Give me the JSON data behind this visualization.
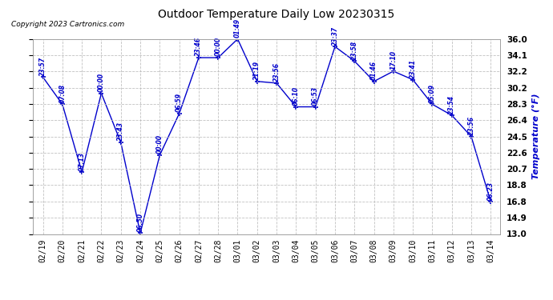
{
  "title": "Outdoor Temperature Daily Low 20230315",
  "ylabel": "Temperature (°F)",
  "copyright": "Copyright 2023 Cartronics.com",
  "background_color": "#ffffff",
  "line_color": "#0000cc",
  "grid_color": "#bbbbbb",
  "ylim": [
    13.0,
    36.0
  ],
  "yticks": [
    13.0,
    14.9,
    16.8,
    18.8,
    20.7,
    22.6,
    24.5,
    26.4,
    28.3,
    30.2,
    32.2,
    34.1,
    36.0
  ],
  "ytick_labels": [
    "13.0",
    "14.9",
    "16.8",
    "18.8",
    "20.7",
    "22.6",
    "24.5",
    "26.4",
    "28.3",
    "30.2",
    "32.2",
    "34.1",
    "36.0"
  ],
  "dates": [
    "02/19",
    "02/20",
    "02/21",
    "02/22",
    "02/23",
    "02/24",
    "02/25",
    "02/26",
    "02/27",
    "02/28",
    "03/01",
    "03/02",
    "03/03",
    "03/04",
    "03/05",
    "03/06",
    "03/07",
    "03/08",
    "03/09",
    "03/10",
    "03/11",
    "03/12",
    "03/13",
    "03/14"
  ],
  "temps": [
    31.5,
    28.3,
    20.3,
    29.6,
    23.8,
    13.1,
    22.3,
    27.2,
    33.8,
    33.8,
    36.0,
    31.0,
    30.8,
    28.0,
    28.0,
    35.1,
    33.4,
    31.0,
    32.2,
    31.2,
    28.3,
    27.0,
    24.5,
    16.8
  ],
  "time_labels": [
    "23:57",
    "07:08",
    "07:13",
    "00:00",
    "23:43",
    "06:50",
    "00:00",
    "06:59",
    "23:46",
    "00:00",
    "01:49",
    "21:19",
    "23:56",
    "06:10",
    "06:53",
    "23:37",
    "23:58",
    "01:46",
    "17:10",
    "23:41",
    "05:09",
    "23:54",
    "23:56",
    "06:23"
  ]
}
